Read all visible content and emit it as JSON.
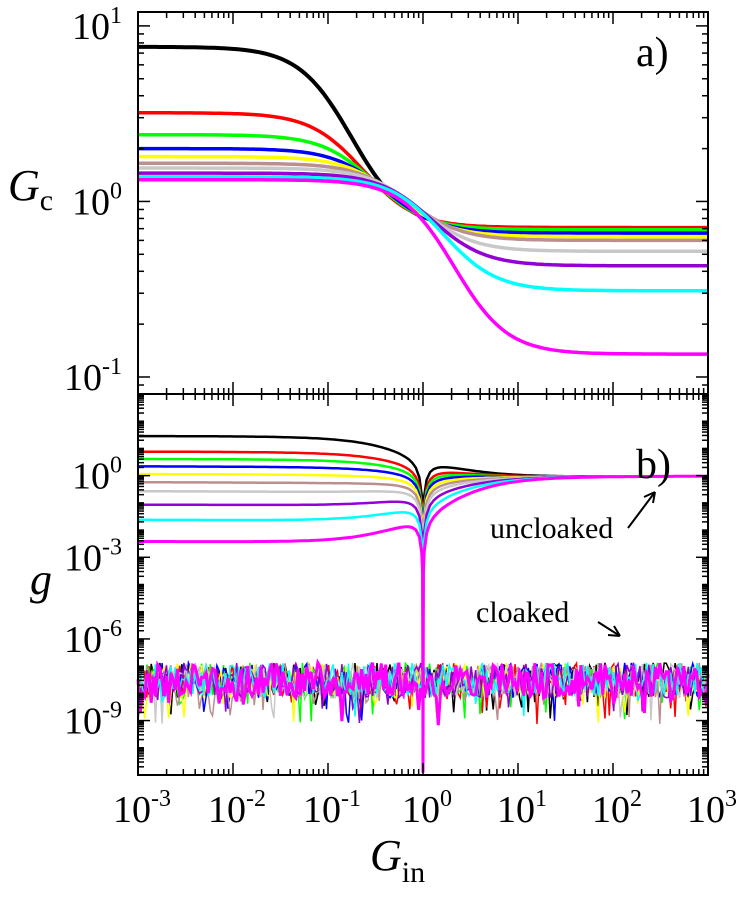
{
  "chart_data": [
    {
      "panel": "a)",
      "type": "line",
      "title": "",
      "xlabel": "G_in",
      "ylabel": "G_c",
      "xscale": "log",
      "yscale": "log",
      "xlim": [
        0.001,
        1000
      ],
      "ylim": [
        0.08,
        12
      ],
      "x_ticks": [
        "10^-3",
        "10^-2",
        "10^-1",
        "10^0",
        "10^1",
        "10^2",
        "10^3"
      ],
      "y_ticks": [
        "10^-1",
        "10^0",
        "10^1"
      ],
      "series": [
        {
          "name": "black",
          "color": "#000000",
          "left_value": 7.6,
          "right_value": 0.7
        },
        {
          "name": "red",
          "color": "#ff0000",
          "left_value": 3.2,
          "right_value": 0.71
        },
        {
          "name": "green",
          "color": "#00ff00",
          "left_value": 2.4,
          "right_value": 0.69
        },
        {
          "name": "blue",
          "color": "#0000ff",
          "left_value": 2.0,
          "right_value": 0.66
        },
        {
          "name": "yellow",
          "color": "#ffff00",
          "left_value": 1.8,
          "right_value": 0.63
        },
        {
          "name": "tan",
          "color": "#bc8f8f",
          "left_value": 1.65,
          "right_value": 0.6
        },
        {
          "name": "lightgray",
          "color": "#c8c8c8",
          "left_value": 1.55,
          "right_value": 0.52
        },
        {
          "name": "purple",
          "color": "#9400d3",
          "left_value": 1.45,
          "right_value": 0.43
        },
        {
          "name": "cyan",
          "color": "#00ffff",
          "left_value": 1.38,
          "right_value": 0.31
        },
        {
          "name": "magenta",
          "color": "#ff00ff",
          "left_value": 1.33,
          "right_value": 0.135
        }
      ]
    },
    {
      "panel": "b)",
      "type": "line",
      "title": "",
      "xlabel": "G_in",
      "ylabel": "g",
      "xscale": "log",
      "yscale": "log",
      "xlim": [
        0.001,
        1000
      ],
      "ylim": [
        1e-11,
        1000
      ],
      "x_ticks": [
        "10^-3",
        "10^-2",
        "10^-1",
        "10^0",
        "10^1",
        "10^2",
        "10^3"
      ],
      "y_ticks": [
        "10^-9",
        "10^-6",
        "10^-3",
        "10^0"
      ],
      "uncloaked_left_values": [
        30,
        8,
        4.3,
        2.3,
        1.2,
        0.6,
        0.28,
        0.09,
        0.025,
        0.004
      ],
      "uncloaked_right_value": 1.0,
      "cloaked_level": 3e-08,
      "annotations": [
        {
          "text": "uncloaked",
          "points_to": "uncloaked curves near G_in = 300"
        },
        {
          "text": "cloaked",
          "points_to": "noise band near G_in = 150"
        }
      ]
    }
  ],
  "labels": {
    "panel_a": "a)",
    "panel_b": "b)",
    "uncloaked": "uncloaked",
    "cloaked": "cloaked"
  }
}
